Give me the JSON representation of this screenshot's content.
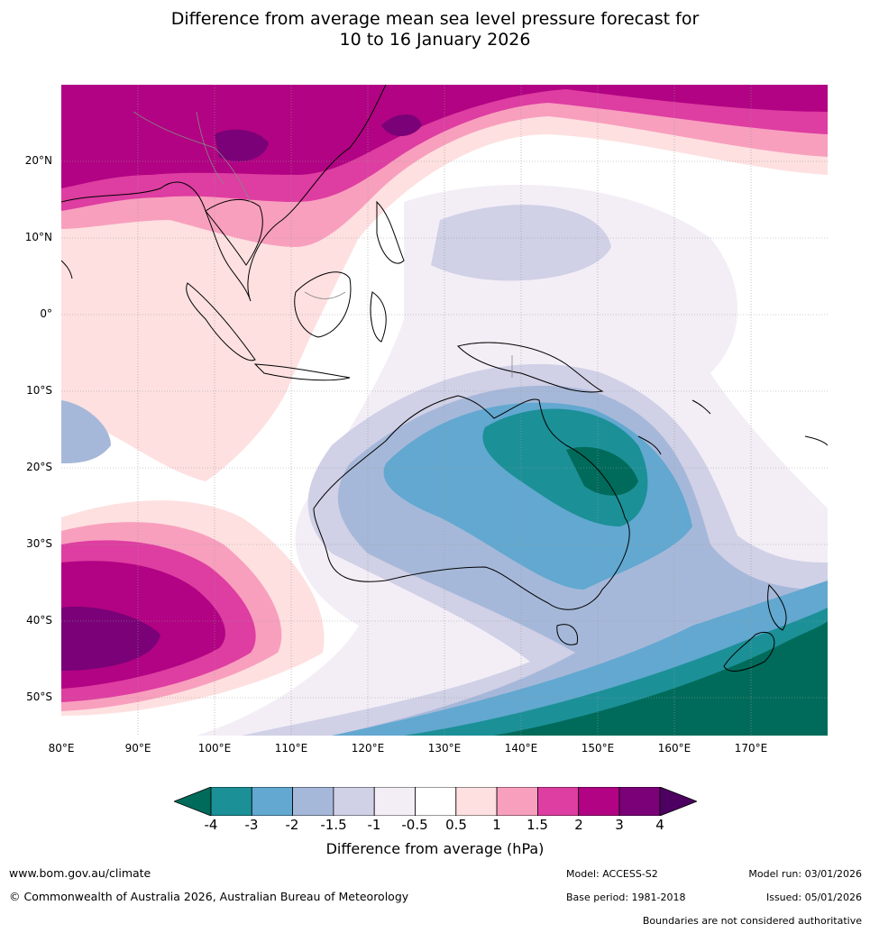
{
  "title": {
    "line1": "Difference from average mean sea level pressure forecast for",
    "line2": "10 to 16 January 2026"
  },
  "map": {
    "lat_labels": [
      "20°N",
      "10°N",
      "0°",
      "10°S",
      "20°S",
      "30°S",
      "40°S",
      "50°S"
    ],
    "lon_labels": [
      "80°E",
      "90°E",
      "100°E",
      "110°E",
      "120°E",
      "130°E",
      "140°E",
      "150°E",
      "160°E",
      "170°E"
    ],
    "extent": {
      "lon": [
        80,
        180
      ],
      "lat": [
        -55,
        30
      ]
    }
  },
  "colorbar": {
    "title": "Difference from average (hPa)",
    "ticks": [
      "-4",
      "-3",
      "-2",
      "-1.5",
      "-1",
      "-0.5",
      "0.5",
      "1",
      "1.5",
      "2",
      "3",
      "4"
    ],
    "colors": [
      "#006b5a",
      "#1b9097",
      "#62a8d0",
      "#a6b8d9",
      "#d0d0e6",
      "#f3eef6",
      "#ffffff",
      "#fee0e0",
      "#f89fbe",
      "#de3da1",
      "#b10383",
      "#7a0177",
      "#4d0061"
    ]
  },
  "footer": {
    "website": "www.bom.gov.au/climate",
    "copyright": "© Commonwealth of Australia 2026, Australian Bureau of Meteorology",
    "model": "Model: ACCESS-S2",
    "base_period": "Base period: 1981-2018",
    "model_run": "Model run: 03/01/2026",
    "issued": "Issued: 05/01/2026",
    "disclaimer": "Boundaries are not considered authoritative"
  }
}
